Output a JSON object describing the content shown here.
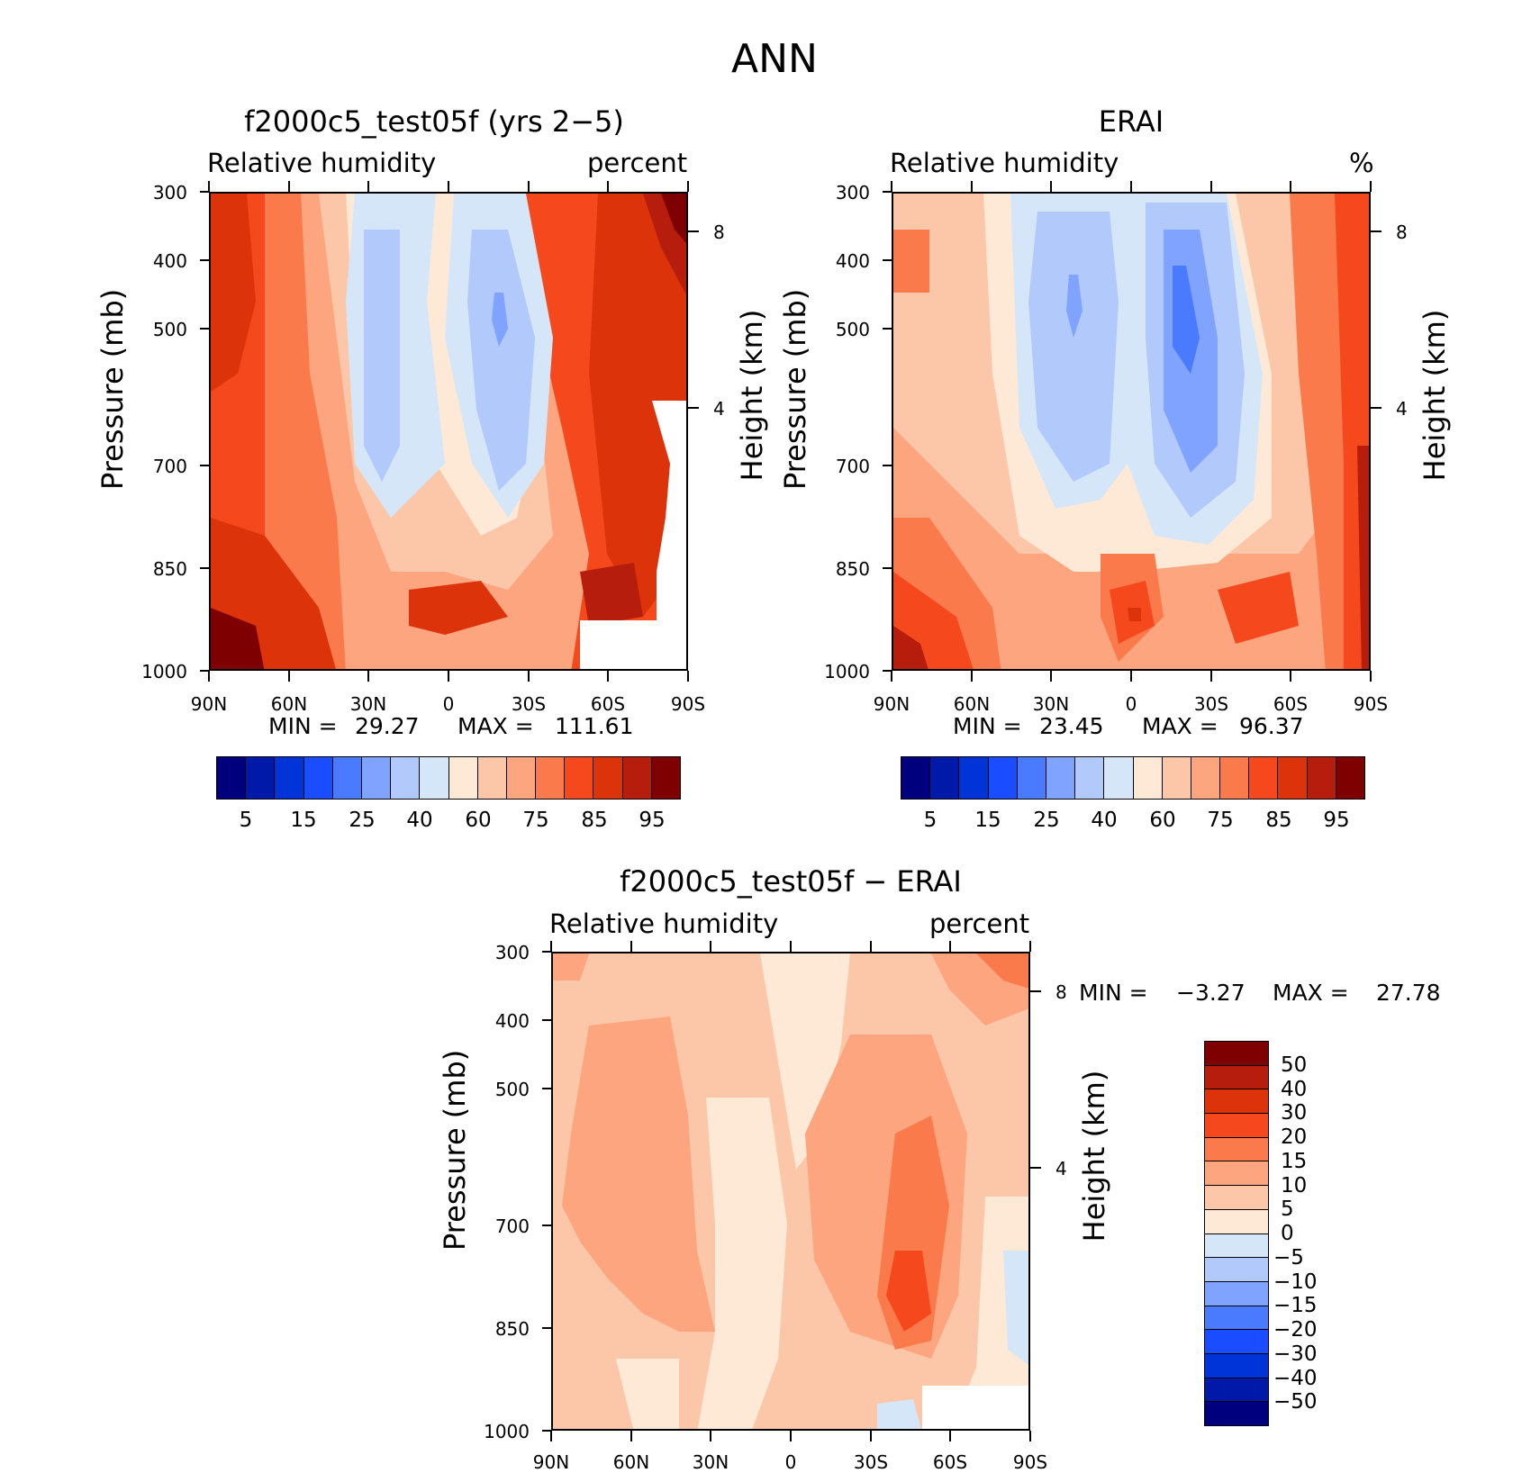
{
  "figure_title": "ANN",
  "chart_data": [
    {
      "type": "heatmap",
      "title": "f2000c5_test05f (yrs 2−5)",
      "left_subtitle": "Relative humidity",
      "right_subtitle": "percent",
      "xlabel": "",
      "ylabel": "Pressure (mb)",
      "y2label": "Height (km)",
      "x_ticks": [
        "90N",
        "60N",
        "30N",
        "0",
        "30S",
        "60S",
        "90S"
      ],
      "y_ticks": [
        "300",
        "400",
        "500",
        "700",
        "850",
        "1000"
      ],
      "y2_ticks": [
        "8",
        "4"
      ],
      "ylim": [
        1000,
        300
      ],
      "min_label": "MIN =",
      "min_value": "29.27",
      "max_label": "MAX =",
      "max_value": "111.61",
      "colorbar_labels": [
        "5",
        "15",
        "25",
        "40",
        "60",
        "75",
        "85",
        "95"
      ]
    },
    {
      "type": "heatmap",
      "title": "ERAI",
      "left_subtitle": "Relative humidity",
      "right_subtitle": "%",
      "xlabel": "",
      "ylabel": "Pressure (mb)",
      "y2label": "Height (km)",
      "x_ticks": [
        "90N",
        "60N",
        "30N",
        "0",
        "30S",
        "60S",
        "90S"
      ],
      "y_ticks": [
        "300",
        "400",
        "500",
        "700",
        "850",
        "1000"
      ],
      "y2_ticks": [
        "8",
        "4"
      ],
      "ylim": [
        1000,
        300
      ],
      "min_label": "MIN =",
      "min_value": "23.45",
      "max_label": "MAX =",
      "max_value": "96.37",
      "colorbar_labels": [
        "5",
        "15",
        "25",
        "40",
        "60",
        "75",
        "85",
        "95"
      ]
    },
    {
      "type": "heatmap",
      "title": "f2000c5_test05f − ERAI",
      "left_subtitle": "Relative humidity",
      "right_subtitle": "percent",
      "xlabel": "",
      "ylabel": "Pressure (mb)",
      "y2label": "Height (km)",
      "x_ticks": [
        "90N",
        "60N",
        "30N",
        "0",
        "30S",
        "60S",
        "90S"
      ],
      "y_ticks": [
        "300",
        "400",
        "500",
        "700",
        "850",
        "1000"
      ],
      "y2_ticks": [
        "8",
        "4"
      ],
      "ylim": [
        1000,
        300
      ],
      "min_label": "MIN =",
      "min_value": "−3.27",
      "max_label": "MAX =",
      "max_value": "27.78",
      "colorbar_labels": [
        "50",
        "40",
        "30",
        "20",
        "15",
        "10",
        "5",
        "0",
        "−5",
        "−10",
        "−15",
        "−20",
        "−30",
        "−40",
        "−50"
      ]
    }
  ],
  "colors": {
    "colorbar_abs": [
      "#00007f",
      "#0019a8",
      "#0033d8",
      "#1a4dff",
      "#4a7bff",
      "#7fa3ff",
      "#b1c9fb",
      "#d6e6f9",
      "#fde9d6",
      "#fcc7a8",
      "#fca57e",
      "#fb7a4c",
      "#f5481d",
      "#dc330a",
      "#b71d0c",
      "#7f0000"
    ],
    "colorbar_diff": [
      "#7f0000",
      "#b71d0c",
      "#dc330a",
      "#f5481d",
      "#fb7a4c",
      "#fca57e",
      "#fcc7a8",
      "#fde9d6",
      "#d6e6f9",
      "#b1c9fb",
      "#7fa3ff",
      "#4a7bff",
      "#1a4dff",
      "#0033d8",
      "#0019a8",
      "#00007f"
    ]
  }
}
